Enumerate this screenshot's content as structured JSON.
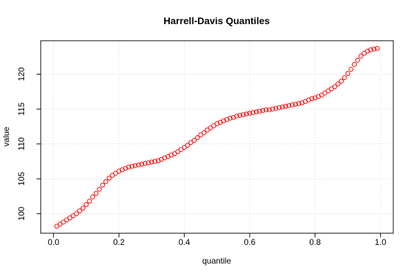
{
  "chart_data": {
    "type": "scatter",
    "title": "Harrell-Davis Quantiles",
    "xlabel": "quantile",
    "ylabel": "value",
    "xlim": [
      -0.0392,
      1.0392
    ],
    "ylim": [
      97.2,
      124.8
    ],
    "xticks": [
      0.0,
      0.2,
      0.4,
      0.6,
      0.8,
      1.0
    ],
    "xtick_labels": [
      "0.0",
      "0.2",
      "0.4",
      "0.6",
      "0.8",
      "1.0"
    ],
    "yticks": [
      100,
      105,
      110,
      115,
      120
    ],
    "ytick_labels": [
      "100",
      "105",
      "110",
      "115",
      "120"
    ],
    "grid": true,
    "marker": "open-circle",
    "point_color": "#ff0000",
    "series": [
      {
        "x": [
          0.01,
          0.02,
          0.03,
          0.04,
          0.05,
          0.06,
          0.07,
          0.08,
          0.09,
          0.1,
          0.11,
          0.12,
          0.13,
          0.14,
          0.15,
          0.16,
          0.17,
          0.18,
          0.19,
          0.2,
          0.21,
          0.22,
          0.23,
          0.24,
          0.25,
          0.26,
          0.27,
          0.28,
          0.29,
          0.3,
          0.31,
          0.32,
          0.33,
          0.34,
          0.35,
          0.36,
          0.37,
          0.38,
          0.39,
          0.4,
          0.41,
          0.42,
          0.43,
          0.44,
          0.45,
          0.46,
          0.47,
          0.48,
          0.49,
          0.5,
          0.51,
          0.52,
          0.53,
          0.54,
          0.55,
          0.56,
          0.57,
          0.58,
          0.59,
          0.6,
          0.61,
          0.62,
          0.63,
          0.64,
          0.65,
          0.66,
          0.67,
          0.68,
          0.69,
          0.7,
          0.71,
          0.72,
          0.73,
          0.74,
          0.75,
          0.76,
          0.77,
          0.78,
          0.79,
          0.8,
          0.81,
          0.82,
          0.83,
          0.84,
          0.85,
          0.86,
          0.87,
          0.88,
          0.89,
          0.9,
          0.91,
          0.92,
          0.93,
          0.94,
          0.95,
          0.96,
          0.97,
          0.98,
          0.99
        ],
        "y": [
          98.2,
          98.5,
          98.8,
          99.1,
          99.4,
          99.7,
          100.0,
          100.4,
          100.8,
          101.3,
          101.8,
          102.4,
          102.9,
          103.5,
          104.1,
          104.6,
          105.1,
          105.5,
          105.8,
          106.1,
          106.3,
          106.5,
          106.7,
          106.8,
          106.9,
          107.0,
          107.1,
          107.2,
          107.3,
          107.4,
          107.5,
          107.6,
          107.8,
          108.0,
          108.2,
          108.4,
          108.6,
          108.9,
          109.2,
          109.5,
          109.8,
          110.2,
          110.5,
          110.9,
          111.3,
          111.6,
          112.0,
          112.3,
          112.6,
          112.9,
          113.1,
          113.3,
          113.5,
          113.7,
          113.8,
          114.0,
          114.1,
          114.2,
          114.3,
          114.4,
          114.5,
          114.6,
          114.7,
          114.8,
          114.9,
          114.9,
          115.0,
          115.1,
          115.2,
          115.3,
          115.4,
          115.5,
          115.6,
          115.7,
          115.8,
          115.9,
          116.1,
          116.3,
          116.5,
          116.6,
          116.8,
          117.0,
          117.3,
          117.6,
          117.9,
          118.2,
          118.6,
          119.0,
          119.5,
          120.1,
          120.7,
          121.4,
          122.0,
          122.6,
          123.0,
          123.3,
          123.5,
          123.6,
          123.7
        ]
      }
    ]
  }
}
